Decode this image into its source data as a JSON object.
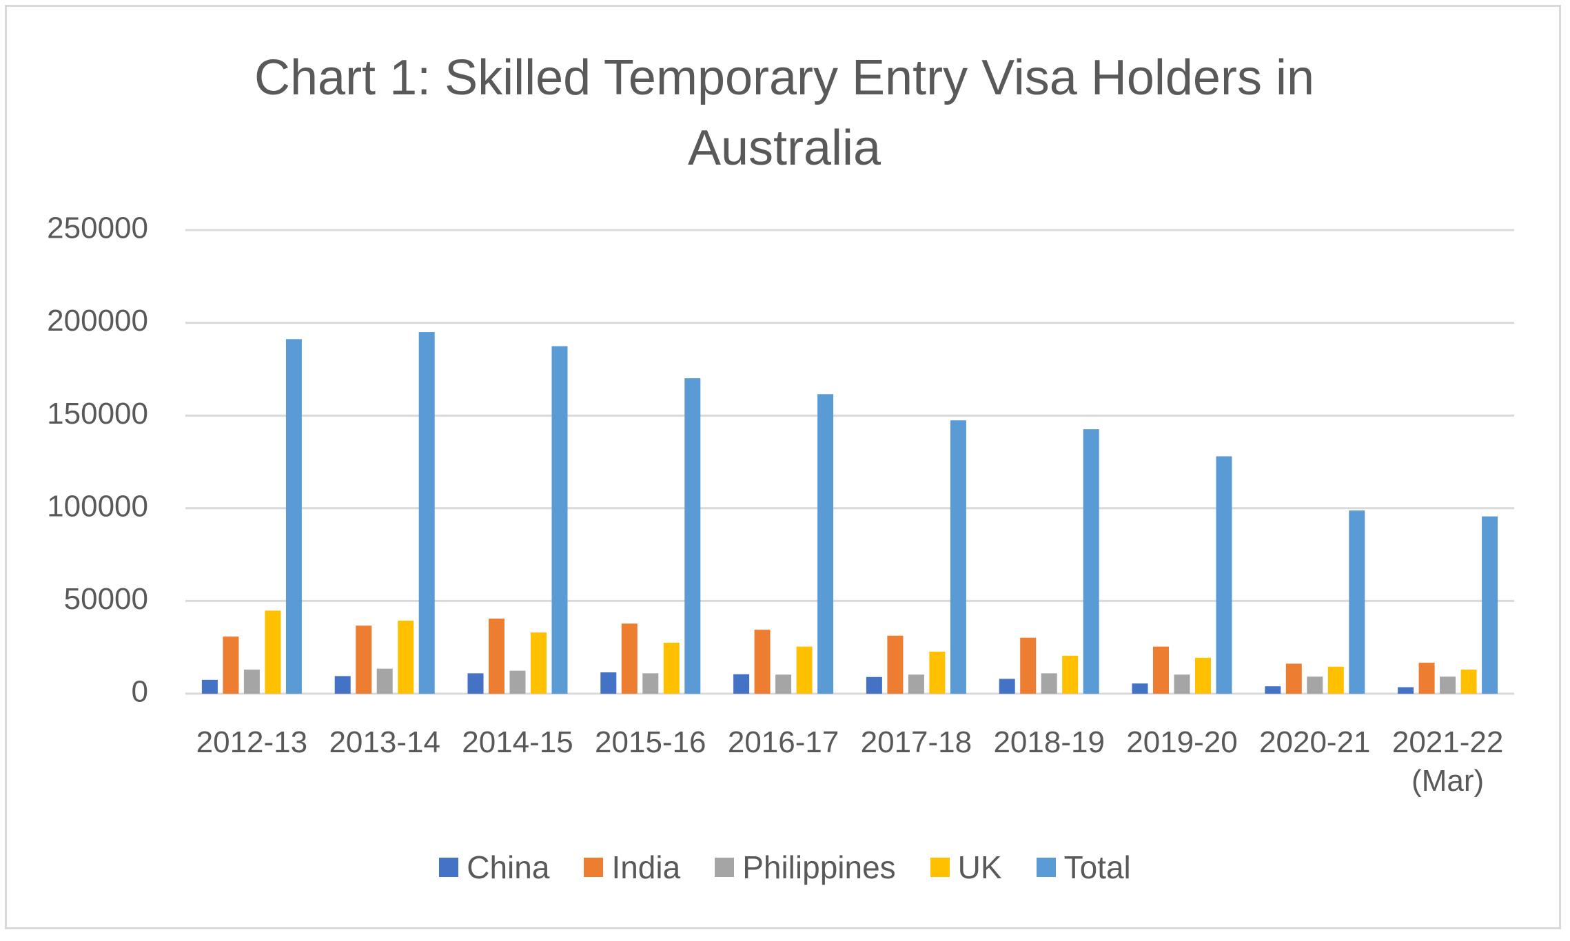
{
  "chart_data": {
    "type": "bar",
    "title": "Chart 1: Skilled Temporary Entry Visa Holders in Australia",
    "categories": [
      "2012-13",
      "2013-14",
      "2014-15",
      "2015-16",
      "2016-17",
      "2017-18",
      "2018-19",
      "2019-20",
      "2020-21",
      "2021-22\n(Mar)"
    ],
    "series": [
      {
        "name": "China",
        "color": "#4472c4",
        "values": [
          7500,
          9500,
          11000,
          11500,
          10500,
          9000,
          8000,
          5500,
          4000,
          3500
        ]
      },
      {
        "name": "India",
        "color": "#ed7d31",
        "values": [
          30800,
          36700,
          40500,
          37800,
          34500,
          31300,
          30200,
          25400,
          16200,
          16700
        ]
      },
      {
        "name": "Philippines",
        "color": "#a5a5a5",
        "values": [
          13000,
          13500,
          12400,
          11000,
          10300,
          10300,
          11000,
          10300,
          9200,
          9200
        ]
      },
      {
        "name": "UK",
        "color": "#ffc000",
        "values": [
          44800,
          39400,
          33000,
          27500,
          25400,
          22700,
          20500,
          19400,
          14600,
          13000
        ]
      },
      {
        "name": "Total",
        "color": "#5b9bd5",
        "values": [
          191200,
          195000,
          187400,
          170100,
          161500,
          147400,
          142600,
          128000,
          98800,
          95600
        ]
      }
    ],
    "ylim": [
      0,
      250000
    ],
    "yticks": [
      0,
      50000,
      100000,
      150000,
      200000,
      250000
    ],
    "grid": true,
    "legend": "bottom"
  }
}
